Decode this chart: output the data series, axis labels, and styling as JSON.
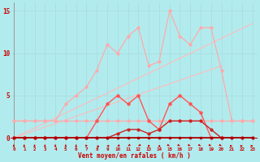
{
  "title": "",
  "xlabel": "Vent moyen/en rafales ( km/h )",
  "bg_color": "#b2ebee",
  "grid_color": "#c8e8e8",
  "x_ticks": [
    0,
    1,
    2,
    3,
    4,
    5,
    6,
    7,
    8,
    9,
    10,
    11,
    12,
    13,
    14,
    15,
    16,
    17,
    18,
    19,
    20,
    21,
    22,
    23
  ],
  "ylim": [
    -1.0,
    16
  ],
  "xlim": [
    -0.3,
    23.5
  ],
  "y_ticks": [
    0,
    5,
    10,
    15
  ],
  "line_diag1": {
    "x": [
      0,
      23
    ],
    "y": [
      0,
      13.5
    ],
    "color": "#ffbbbb",
    "lw": 0.8
  },
  "line_diag2": {
    "x": [
      0,
      20
    ],
    "y": [
      0,
      8.5
    ],
    "color": "#ffbbbb",
    "lw": 0.8
  },
  "line_flat": {
    "x": [
      0,
      1,
      2,
      3,
      4,
      5,
      6,
      7,
      8,
      9,
      10,
      11,
      12,
      13,
      14,
      15,
      16,
      17,
      18,
      19,
      20,
      21,
      22,
      23
    ],
    "y": [
      2,
      2,
      2,
      2,
      2,
      2,
      2,
      2,
      2,
      2,
      2,
      2,
      2,
      2,
      2,
      2,
      2,
      2,
      2,
      2,
      2,
      2,
      2,
      2
    ],
    "color": "#ffaaaa",
    "lw": 0.9,
    "marker": "o",
    "ms": 2.0
  },
  "line_pink_jagged": {
    "x": [
      0,
      1,
      2,
      3,
      4,
      5,
      6,
      7,
      8,
      9,
      10,
      11,
      12,
      13,
      14,
      15,
      16,
      17,
      18,
      19,
      20,
      21,
      22,
      23
    ],
    "y": [
      2,
      2,
      2,
      2,
      2,
      4,
      5,
      6,
      8,
      11,
      10,
      12,
      13,
      8.5,
      9,
      15,
      12,
      11,
      13,
      13,
      8,
      2,
      2,
      2
    ],
    "color": "#ffaaaa",
    "lw": 0.9,
    "marker": "o",
    "ms": 2.0
  },
  "line_red_medium": {
    "x": [
      0,
      1,
      2,
      3,
      4,
      5,
      6,
      7,
      8,
      9,
      10,
      11,
      12,
      13,
      14,
      15,
      16,
      17,
      18,
      19,
      20
    ],
    "y": [
      0,
      0,
      0,
      0,
      0,
      0,
      0,
      0,
      2,
      4,
      5,
      4,
      5,
      2,
      1,
      4,
      5,
      4,
      3,
      0,
      0
    ],
    "color": "#ff5555",
    "lw": 1.0,
    "marker": "o",
    "ms": 2.2
  },
  "line_red_low1": {
    "x": [
      0,
      1,
      2,
      3,
      4,
      5,
      6,
      7,
      8,
      9,
      10,
      11,
      12,
      13,
      14,
      15,
      16,
      17,
      18,
      19,
      20,
      21,
      22,
      23
    ],
    "y": [
      0,
      0,
      0,
      0,
      0,
      0,
      0,
      0,
      0,
      0,
      0.5,
      1,
      1,
      0.5,
      1,
      2,
      2,
      2,
      2,
      1,
      0,
      0,
      0,
      0
    ],
    "color": "#cc2222",
    "lw": 1.0,
    "marker": "o",
    "ms": 2.0
  },
  "line_red_low2": {
    "x": [
      0,
      1,
      2,
      3,
      4,
      5,
      6,
      7,
      8,
      9,
      10,
      11,
      12,
      13,
      14,
      15,
      16,
      17,
      18,
      19,
      20,
      21,
      22,
      23
    ],
    "y": [
      0,
      0,
      0,
      0,
      0,
      0,
      0,
      0,
      0,
      0,
      0,
      0,
      0,
      0,
      0,
      0,
      0,
      0,
      0,
      0,
      0,
      0,
      0,
      0
    ],
    "color": "#aa0000",
    "lw": 1.2,
    "marker": "s",
    "ms": 2.0
  },
  "arrows_color": "#cc0000",
  "arrows_x": [
    0,
    1,
    2,
    3,
    4,
    5,
    6,
    7,
    8,
    9,
    10,
    11,
    12,
    13,
    14,
    15,
    16,
    17,
    18,
    19,
    20,
    21,
    22,
    23
  ],
  "arrows_angles": [
    180,
    180,
    180,
    180,
    180,
    180,
    180,
    210,
    240,
    270,
    300,
    315,
    315,
    350,
    30,
    45,
    45,
    45,
    45,
    45,
    45,
    90,
    90,
    90
  ]
}
